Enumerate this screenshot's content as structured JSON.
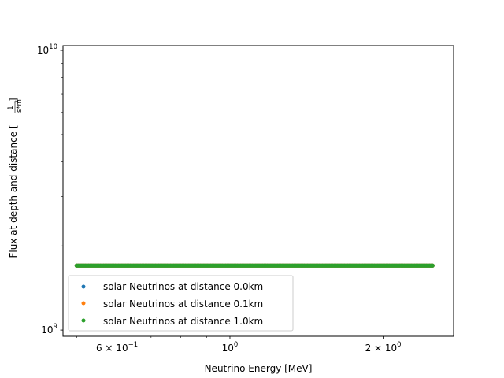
{
  "chart_data": {
    "type": "scatter",
    "xscale": "log",
    "yscale": "log",
    "xlabel": "Neutrino Energy [MeV]",
    "ylabel": "Flux at depth and distance [",
    "ylabel_unit_numerator": "1",
    "ylabel_unit_denominator": "s*m",
    "ylabel_unit_exponent": "2",
    "ylabel_close": "]",
    "xlim": [
      0.47,
      2.75
    ],
    "ylim": [
      950000000,
      10400000000
    ],
    "x_ticks": [
      {
        "value": 0.6,
        "base": "6 × 10",
        "exp": "−1"
      },
      {
        "value": 1.0,
        "base": "10",
        "exp": "0"
      },
      {
        "value": 2.0,
        "base": "2 × 10",
        "exp": "0"
      }
    ],
    "x_minor_ticks": [
      0.5,
      0.7,
      0.8,
      0.9,
      3.0
    ],
    "y_ticks": [
      {
        "value": 1000000000,
        "base": "10",
        "exp": "9"
      },
      {
        "value": 10000000000,
        "base": "10",
        "exp": "10"
      }
    ],
    "y_minor_ticks": [
      2000000000,
      3000000000,
      4000000000,
      5000000000,
      6000000000,
      7000000000,
      8000000000,
      9000000000
    ],
    "x_range": [
      0.5,
      2.5
    ],
    "n_points": 240,
    "series": [
      {
        "name": "solar Neutrinos at distance 0.0km",
        "color": "#1f77b4",
        "flux": 1700000000
      },
      {
        "name": "solar Neutrinos at distance 0.1km",
        "color": "#ff7f0e",
        "flux": 1700000000
      },
      {
        "name": "solar Neutrinos at distance 1.0km",
        "color": "#2ca02c",
        "flux": 1700000000
      }
    ],
    "legend_location": "lower-left"
  }
}
